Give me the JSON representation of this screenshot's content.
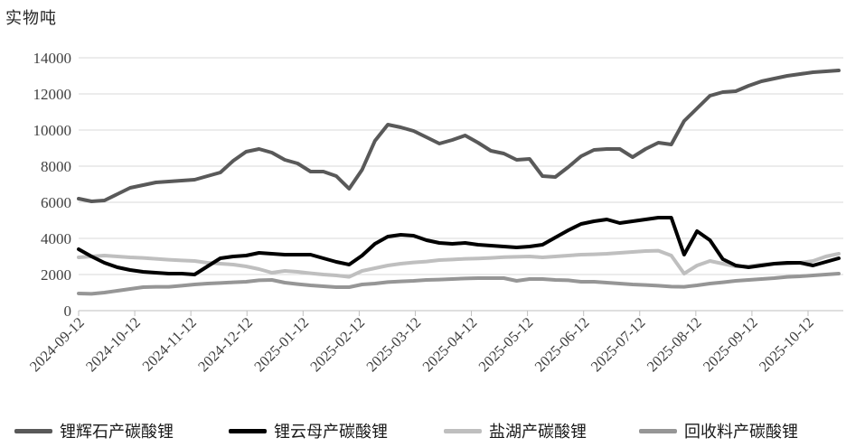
{
  "chart": {
    "unit_label": "实物吨"
  },
  "chart_data": {
    "type": "line",
    "unit_label": "实物吨",
    "grid": true,
    "legend_position": "bottom",
    "x_ticks": [
      "2024-09-12",
      "2024-10-12",
      "2024-11-12",
      "2024-12-12",
      "2025-01-12",
      "2025-02-12",
      "2025-03-12",
      "2025-04-12",
      "2025-05-12",
      "2025-06-12",
      "2025-07-12",
      "2025-08-12",
      "2025-09-12",
      "2025-10-12"
    ],
    "y_axis": {
      "min": 0,
      "max": 14000,
      "step": 2000,
      "ticks": [
        14000,
        12000,
        10000,
        8000,
        6000,
        4000,
        2000,
        0
      ]
    },
    "series": [
      {
        "key": "spodumene",
        "name": "锂辉石产碳酸锂",
        "color": "#595959",
        "values": [
          6200,
          6050,
          6100,
          6450,
          6800,
          6950,
          7100,
          7150,
          7200,
          7250,
          7450,
          7650,
          8300,
          8800,
          8950,
          8750,
          8350,
          8150,
          7700,
          7700,
          7450,
          6750,
          7800,
          9400,
          10300,
          10150,
          9950,
          9600,
          9250,
          9450,
          9700,
          9300,
          8850,
          8700,
          8350,
          8400,
          7450,
          7400,
          7950,
          8550,
          8900,
          8950,
          8950,
          8500,
          8950,
          9300,
          9200,
          10500,
          11200,
          11900,
          12100,
          12150,
          12450,
          12700,
          12850,
          13000,
          13100,
          13200,
          13250,
          13300
        ]
      },
      {
        "key": "lepidolite",
        "name": "锂云母产碳酸锂",
        "color": "#000000",
        "values": [
          3400,
          3000,
          2650,
          2400,
          2250,
          2150,
          2100,
          2050,
          2050,
          2000,
          2450,
          2900,
          3000,
          3050,
          3200,
          3150,
          3100,
          3100,
          3100,
          2900,
          2700,
          2550,
          3050,
          3700,
          4100,
          4200,
          4150,
          3900,
          3750,
          3700,
          3750,
          3650,
          3600,
          3550,
          3500,
          3550,
          3650,
          4050,
          4450,
          4800,
          4950,
          5050,
          4850,
          4950,
          5050,
          5150,
          5150,
          3100,
          4400,
          3900,
          2850,
          2500,
          2400,
          2500,
          2600,
          2650,
          2650,
          2500,
          2700,
          2900
        ]
      },
      {
        "key": "salt-lake",
        "name": "盐湖产碳酸锂",
        "color": "#BFBFBF",
        "values": [
          2950,
          3000,
          3050,
          3000,
          2950,
          2920,
          2870,
          2820,
          2780,
          2750,
          2650,
          2600,
          2550,
          2450,
          2300,
          2100,
          2200,
          2150,
          2070,
          2000,
          1950,
          1870,
          2200,
          2350,
          2500,
          2600,
          2670,
          2720,
          2800,
          2830,
          2870,
          2890,
          2920,
          2960,
          2980,
          3000,
          2950,
          3000,
          3050,
          3100,
          3120,
          3150,
          3200,
          3250,
          3300,
          3320,
          3050,
          2050,
          2500,
          2750,
          2600,
          2450,
          2450,
          2550,
          2600,
          2600,
          2650,
          2750,
          3000,
          3150
        ]
      },
      {
        "key": "recycled",
        "name": "回收料产碳酸锂",
        "color": "#969696",
        "values": [
          950,
          930,
          1000,
          1100,
          1200,
          1300,
          1320,
          1320,
          1380,
          1450,
          1500,
          1530,
          1570,
          1600,
          1680,
          1700,
          1550,
          1470,
          1400,
          1350,
          1300,
          1300,
          1450,
          1500,
          1580,
          1620,
          1650,
          1700,
          1720,
          1750,
          1780,
          1800,
          1800,
          1800,
          1650,
          1750,
          1750,
          1700,
          1680,
          1600,
          1600,
          1550,
          1500,
          1450,
          1420,
          1380,
          1330,
          1320,
          1400,
          1500,
          1570,
          1650,
          1700,
          1750,
          1800,
          1870,
          1900,
          1950,
          2000,
          2050
        ]
      }
    ]
  }
}
